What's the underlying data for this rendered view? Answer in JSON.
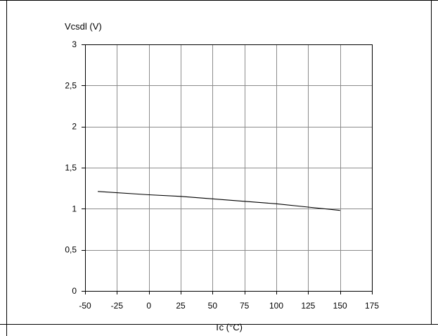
{
  "chart_data": {
    "type": "line",
    "title": "",
    "ylabel": "Vcsdl (V)",
    "xlabel": "Tc (°C)",
    "xlim": [
      -50,
      175
    ],
    "ylim": [
      0,
      3
    ],
    "x_ticks": [
      -50,
      -25,
      0,
      25,
      50,
      75,
      100,
      125,
      150,
      175
    ],
    "y_ticks": [
      0,
      0.5,
      1,
      1.5,
      2,
      2.5,
      3
    ],
    "x_tick_labels": [
      "-50",
      "-25",
      "0",
      "25",
      "50",
      "75",
      "100",
      "125",
      "150",
      "175"
    ],
    "y_tick_labels": [
      "0",
      "0,5",
      "1",
      "1,5",
      "2",
      "2,5",
      "3"
    ],
    "grid": true,
    "series": [
      {
        "x": [
          -40,
          0,
          25,
          50,
          75,
          100,
          125,
          150
        ],
        "y": [
          1.21,
          1.17,
          1.15,
          1.12,
          1.09,
          1.06,
          1.02,
          0.98
        ]
      }
    ]
  }
}
